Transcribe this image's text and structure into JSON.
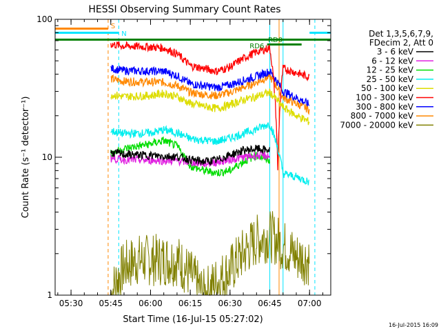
{
  "chart_data": {
    "type": "line",
    "title": "HESSI Observing Summary Count Rates",
    "xlabel": "Start Time (16-Jul-15 05:27:02)",
    "ylabel": "Count Rate (s⁻¹ detector⁻¹)",
    "yscale": "log",
    "ylim": [
      1,
      100
    ],
    "xlim": [
      "05:24",
      "07:08"
    ],
    "x_ticks": [
      "05:30",
      "05:45",
      "06:00",
      "06:15",
      "06:30",
      "06:45",
      "07:00"
    ],
    "y_ticks": [
      "1",
      "10",
      "100"
    ],
    "legend_header": [
      "Det 1,3,5,6,7,9,",
      "FDecim 2, Att 0"
    ],
    "legend_position": "right",
    "series": [
      {
        "name": "3 - 6 keV",
        "color": "#000000",
        "x": [
          "05:45",
          "05:50",
          "06:00",
          "06:10",
          "06:15",
          "06:20",
          "06:25",
          "06:30",
          "06:35",
          "06:40",
          "06:45",
          "06:48"
        ],
        "values": [
          10.8,
          10.5,
          10.3,
          10.1,
          9.6,
          9.3,
          9.5,
          10.4,
          11.2,
          11.5,
          11.2,
          null
        ]
      },
      {
        "name": "6 - 12 keV",
        "color": "#e020e0",
        "x": [
          "05:45",
          "05:50",
          "06:00",
          "06:10",
          "06:15",
          "06:20",
          "06:25",
          "06:30",
          "06:35",
          "06:40",
          "06:45",
          "06:48"
        ],
        "values": [
          9.8,
          9.6,
          9.5,
          9.4,
          9.2,
          9.0,
          9.2,
          9.6,
          10.0,
          10.3,
          10.2,
          null
        ]
      },
      {
        "name": "12 - 25 keV",
        "color": "#00dd00",
        "x": [
          "05:45",
          "05:50",
          "06:00",
          "06:05",
          "06:10",
          "06:15",
          "06:20",
          "06:25",
          "06:30",
          "06:35",
          "06:40",
          "06:45"
        ],
        "values": [
          10.6,
          11.5,
          12.5,
          13.2,
          12.0,
          8.6,
          8.0,
          7.7,
          8.0,
          9.3,
          10.3,
          9.5
        ]
      },
      {
        "name": "25 - 50 keV",
        "color": "#00eeee",
        "x": [
          "05:45",
          "05:50",
          "06:00",
          "06:05",
          "06:10",
          "06:15",
          "06:20",
          "06:25",
          "06:30",
          "06:35",
          "06:40",
          "06:45",
          "06:50",
          "06:55",
          "07:00"
        ],
        "values": [
          15.5,
          14.8,
          15.0,
          15.8,
          15.0,
          13.6,
          13.3,
          13.0,
          13.8,
          14.8,
          16.0,
          17.5,
          7.6,
          7.2,
          6.6
        ]
      },
      {
        "name": "50 - 100 keV",
        "color": "#dddd00",
        "x": [
          "05:45",
          "05:50",
          "06:00",
          "06:05",
          "06:10",
          "06:15",
          "06:20",
          "06:25",
          "06:30",
          "06:35",
          "06:40",
          "06:45",
          "06:50",
          "06:55",
          "07:00"
        ],
        "values": [
          28.5,
          27.5,
          28.0,
          29.0,
          27.5,
          24.5,
          23.5,
          22.5,
          24.0,
          26.0,
          27.5,
          29.5,
          23.0,
          20.0,
          18.0
        ]
      },
      {
        "name": "100 - 300 keV",
        "color": "#ff0000",
        "x": [
          "05:45",
          "05:50",
          "06:00",
          "06:05",
          "06:10",
          "06:15",
          "06:20",
          "06:25",
          "06:30",
          "06:35",
          "06:40",
          "06:45",
          "06:48",
          "06:50",
          "06:55",
          "07:00"
        ],
        "values": [
          66.0,
          64.0,
          63.0,
          62.0,
          56.0,
          46.0,
          44.0,
          42.0,
          45.0,
          52.0,
          58.0,
          62.0,
          7.8,
          44.0,
          41.0,
          38.0
        ]
      },
      {
        "name": "300 - 800 keV",
        "color": "#0000ff",
        "x": [
          "05:45",
          "05:50",
          "06:00",
          "06:05",
          "06:10",
          "06:15",
          "06:20",
          "06:25",
          "06:30",
          "06:35",
          "06:40",
          "06:45",
          "06:50",
          "06:55",
          "07:00"
        ],
        "values": [
          44.0,
          42.5,
          42.0,
          42.0,
          39.0,
          34.0,
          33.0,
          32.0,
          33.5,
          36.0,
          38.5,
          42.0,
          30.0,
          27.0,
          24.0
        ]
      },
      {
        "name": "800 - 7000 keV",
        "color": "#ff8800",
        "x": [
          "05:45",
          "05:50",
          "06:00",
          "06:05",
          "06:10",
          "06:15",
          "06:20",
          "06:25",
          "06:30",
          "06:35",
          "06:40",
          "06:45",
          "06:50",
          "06:55",
          "07:00"
        ],
        "values": [
          37.0,
          35.5,
          35.0,
          35.0,
          33.0,
          29.5,
          28.5,
          28.0,
          29.5,
          32.0,
          35.0,
          38.5,
          27.0,
          24.5,
          22.0
        ]
      },
      {
        "name": "7000 - 20000 keV",
        "color": "#808000",
        "x": [
          "05:45",
          "05:50",
          "05:55",
          "06:00",
          "06:10",
          "06:20",
          "06:30",
          "06:40",
          "06:45",
          "06:50",
          "06:55",
          "07:00"
        ],
        "values": [
          1.0,
          1.6,
          1.8,
          1.8,
          1.8,
          1.0,
          1.5,
          2.5,
          2.7,
          2.3,
          1.9,
          1.8
        ]
      }
    ],
    "annotations": [
      "S",
      "N",
      "RD0",
      "RD6"
    ],
    "timestamp": "16-Jul-2015 16:09"
  }
}
